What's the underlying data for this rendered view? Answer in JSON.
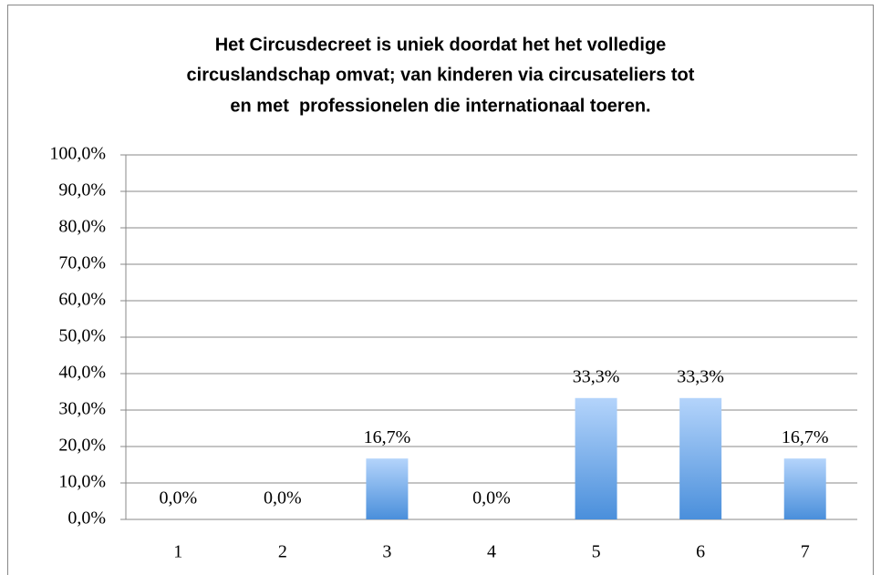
{
  "chart_data": {
    "type": "bar",
    "title": [
      "Het Circusdecreet is uniek doordat het het volledige",
      "circuslandschap omvat; van kinderen via circusateliers tot",
      "en met  professionelen die internationaal toeren."
    ],
    "categories": [
      "1",
      "2",
      "3",
      "4",
      "5",
      "6",
      "7"
    ],
    "values": [
      0,
      0,
      16.7,
      0,
      33.3,
      33.3,
      16.7
    ],
    "value_labels": [
      "0,0%",
      "0,0%",
      "16,7%",
      "0,0%",
      "33,3%",
      "33,3%",
      "16,7%"
    ],
    "color": [
      "#b4d4fb",
      "#4a8fdb"
    ],
    "ylim": [
      0,
      100
    ],
    "yticks": [
      {
        "value": 0,
        "label": "0,0%"
      },
      {
        "value": 10,
        "label": "10,0%"
      },
      {
        "value": 20,
        "label": "20,0%"
      },
      {
        "value": 30,
        "label": "30,0%"
      },
      {
        "value": 40,
        "label": "40,0%"
      },
      {
        "value": 50,
        "label": "50,0%"
      },
      {
        "value": 60,
        "label": "60,0%"
      },
      {
        "value": 70,
        "label": "70,0%"
      },
      {
        "value": 80,
        "label": "80,0%"
      },
      {
        "value": 90,
        "label": "90,0%"
      },
      {
        "value": 100,
        "label": "100,0%"
      }
    ],
    "grid": true
  }
}
